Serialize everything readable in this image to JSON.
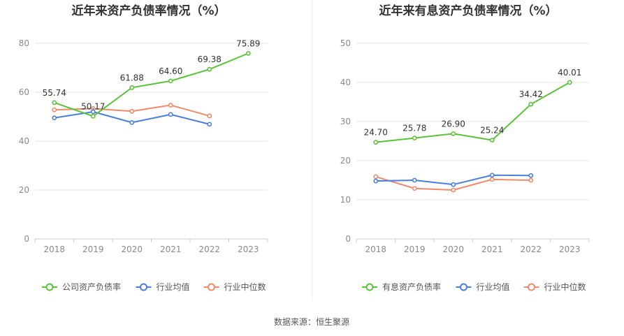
{
  "source": "数据来源：恒生聚源",
  "chart_data": [
    {
      "type": "line",
      "title": "近年来资产负债率情况（%）",
      "categories": [
        "2018",
        "2019",
        "2020",
        "2021",
        "2022",
        "2023"
      ],
      "ylim": [
        0,
        80
      ],
      "yticks": [
        0,
        20,
        40,
        60,
        80
      ],
      "grid": true,
      "legend_position": "bottom",
      "series": [
        {
          "name": "公司资产负债率",
          "color": "#5cc23a",
          "values": [
            55.74,
            50.17,
            61.88,
            64.6,
            69.38,
            75.89
          ],
          "labels": [
            "55.74",
            "50.17",
            "61.88",
            "64.60",
            "69.38",
            "75.89"
          ]
        },
        {
          "name": "行业均值",
          "color": "#4a7fe0",
          "values": [
            49.5,
            52.0,
            47.6,
            50.9,
            46.9,
            null
          ],
          "labels": []
        },
        {
          "name": "行业中位数",
          "color": "#f08a6a",
          "values": [
            52.8,
            53.3,
            52.2,
            54.7,
            50.3,
            null
          ],
          "labels": []
        }
      ]
    },
    {
      "type": "line",
      "title": "近年来有息资产负债率情况（%）",
      "categories": [
        "2018",
        "2019",
        "2020",
        "2021",
        "2022",
        "2023"
      ],
      "ylim": [
        0,
        50
      ],
      "yticks": [
        0,
        10,
        20,
        30,
        40,
        50
      ],
      "grid": true,
      "legend_position": "bottom",
      "series": [
        {
          "name": "有息资产负债率",
          "color": "#5cc23a",
          "values": [
            24.7,
            25.78,
            26.9,
            25.24,
            34.42,
            40.01
          ],
          "labels": [
            "24.70",
            "25.78",
            "26.90",
            "25.24",
            "34.42",
            "40.01"
          ]
        },
        {
          "name": "行业均值",
          "color": "#4a7fe0",
          "values": [
            14.8,
            15.0,
            13.9,
            16.3,
            16.2,
            null
          ],
          "labels": []
        },
        {
          "name": "行业中位数",
          "color": "#f08a6a",
          "values": [
            15.9,
            12.9,
            12.5,
            15.2,
            15.0,
            null
          ],
          "labels": []
        }
      ]
    }
  ]
}
